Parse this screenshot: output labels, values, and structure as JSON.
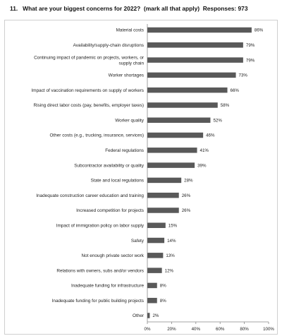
{
  "title": {
    "number": "11.",
    "question": "What are your biggest concerns for 2022?",
    "note": "(mark all that apply)",
    "responses": "Responses: 973"
  },
  "chart_data": {
    "type": "bar",
    "orientation": "horizontal",
    "categories": [
      [
        "Material costs"
      ],
      [
        "Availability/supply-chain disruptions"
      ],
      [
        "Continuing impact of pandemic on projects, workers, or",
        "supply chain"
      ],
      [
        "Worker shortages"
      ],
      [
        "Impact of vaccination requirements on supply of workers"
      ],
      [
        "Rising direct labor costs (pay, benefits, employer taxes)"
      ],
      [
        "Worker quality"
      ],
      [
        "Other costs (e.g., trucking, insurance, services)"
      ],
      [
        "Federal regulations"
      ],
      [
        "Subcontractor availability or quality"
      ],
      [
        "State and local regulations"
      ],
      [
        "Inadequate construction career education and training"
      ],
      [
        "Increased competition for projects"
      ],
      [
        "Impact of immigration policy on labor supply"
      ],
      [
        "Safety"
      ],
      [
        "Not enough private sector work"
      ],
      [
        "Relations with owners, subs and/or vendors"
      ],
      [
        "Inadequate funding for infrastructure"
      ],
      [
        "Inadequate funding for public building projects"
      ],
      [
        "Other"
      ]
    ],
    "values": [
      86,
      79,
      79,
      73,
      66,
      58,
      52,
      46,
      41,
      39,
      28,
      26,
      26,
      15,
      14,
      13,
      12,
      8,
      8,
      2
    ],
    "value_labels": [
      "86%",
      "79%",
      "79%",
      "73%",
      "66%",
      "58%",
      "52%",
      "46%",
      "41%",
      "39%",
      "28%",
      "26%",
      "26%",
      "15%",
      "14%",
      "13%",
      "12%",
      "8%",
      "8%",
      "2%"
    ],
    "xlim": [
      0,
      100
    ],
    "xticks": [
      "0%",
      "20%",
      "40%",
      "60%",
      "80%",
      "100%"
    ],
    "bar_color": "#595959",
    "grid": false,
    "legend": "none"
  }
}
